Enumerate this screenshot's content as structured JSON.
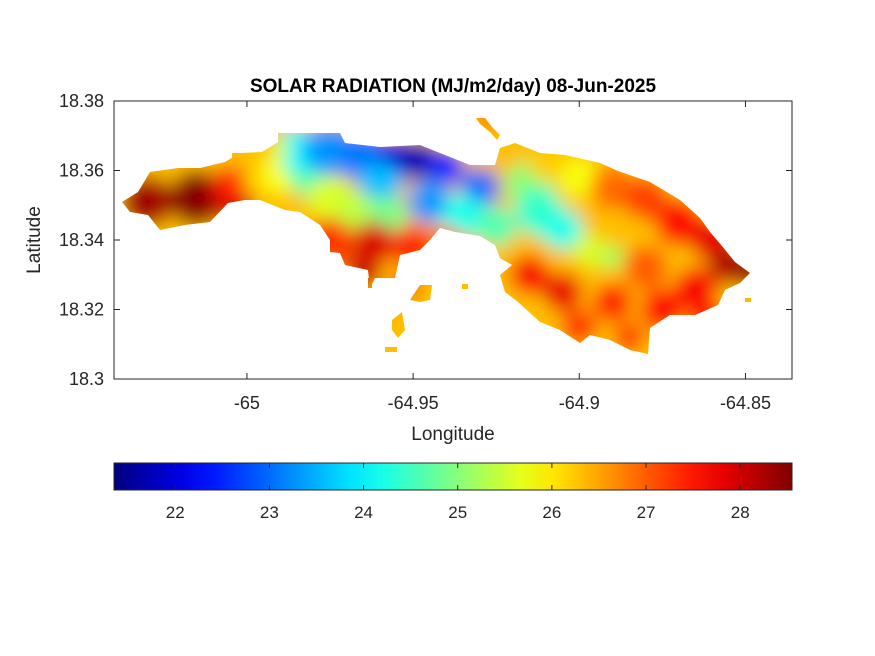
{
  "chart_data": {
    "type": "heatmap",
    "title": "SOLAR RADIATION (MJ/m2/day) 08-Jun-2025",
    "xlabel": "Longitude",
    "ylabel": "Latitude",
    "xlim": [
      -65.04,
      -64.836
    ],
    "ylim": [
      18.3,
      18.38
    ],
    "xticks": [
      "-65",
      "-64.95",
      "-64.9",
      "-64.85"
    ],
    "xtick_values": [
      -65,
      -64.95,
      -64.9,
      -64.85
    ],
    "yticks": [
      "18.38",
      "18.36",
      "18.34",
      "18.32",
      "18.3"
    ],
    "ytick_values": [
      18.38,
      18.36,
      18.34,
      18.32,
      18.3
    ],
    "colormap": "jet",
    "clim": [
      21.35,
      28.55
    ],
    "colorbar": {
      "location": "bottom",
      "ticks": [
        "22",
        "23",
        "24",
        "25",
        "26",
        "27",
        "28"
      ],
      "tick_values": [
        22,
        23,
        24,
        25,
        26,
        27,
        28
      ]
    },
    "grid": false,
    "regions": [
      {
        "name": "west end",
        "lon_range": [
          -65.037,
          -65.0
        ],
        "lat_range": [
          18.343,
          18.359
        ],
        "value_approx": 28.3
      },
      {
        "name": "west-central ridge",
        "lon_range": [
          -64.99,
          -64.94
        ],
        "lat_range": [
          18.345,
          18.37
        ],
        "value_approx": 24.0
      },
      {
        "name": "north-central low",
        "lon_range": [
          -64.96,
          -64.94
        ],
        "lat_range": [
          18.358,
          18.367
        ],
        "value_approx": 21.6
      },
      {
        "name": "southwest coast",
        "lon_range": [
          -64.975,
          -64.92
        ],
        "lat_range": [
          18.326,
          18.345
        ],
        "value_approx": 27.6
      },
      {
        "name": "east-central ridge",
        "lon_range": [
          -64.92,
          -64.89
        ],
        "lat_range": [
          18.335,
          18.365
        ],
        "value_approx": 25.0
      },
      {
        "name": "east end",
        "lon_range": [
          -64.89,
          -64.847
        ],
        "lat_range": [
          18.307,
          18.36
        ],
        "value_approx": 27.8
      }
    ]
  },
  "colors": {
    "colormap_stops": [
      "#000080",
      "#0000ff",
      "#00ffff",
      "#ffff00",
      "#ff0000",
      "#800000"
    ],
    "axis": "#262626"
  }
}
